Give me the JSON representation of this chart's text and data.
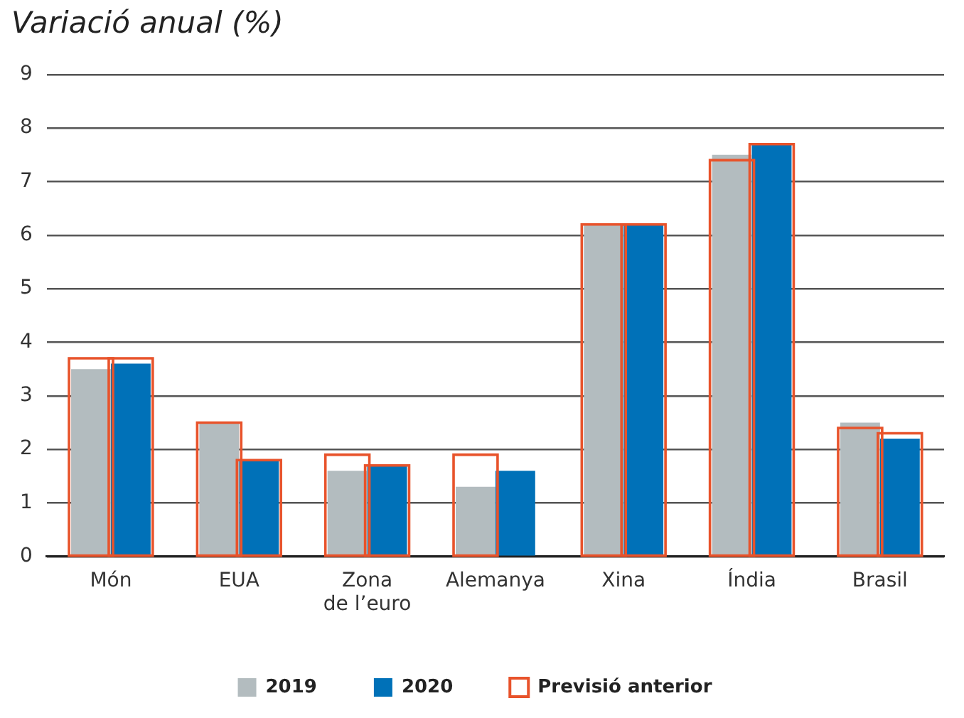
{
  "chart_data": {
    "type": "bar",
    "title": "Variació anual (%)",
    "categories": [
      "Món",
      "EUA",
      "Zona de l’euro",
      "Alemanya",
      "Xina",
      "Índia",
      "Brasil"
    ],
    "series": [
      {
        "name": "2019",
        "color": "#b3bcbf",
        "values": [
          3.5,
          2.5,
          1.6,
          1.3,
          6.2,
          7.5,
          2.5
        ]
      },
      {
        "name": "2020",
        "color": "#0071b8",
        "values": [
          3.6,
          1.8,
          1.7,
          1.6,
          6.2,
          7.7,
          2.2
        ]
      },
      {
        "name": "Previsió anterior",
        "color": "#e8532b",
        "values": [
          3.7,
          2.5,
          1.9,
          1.9,
          6.2,
          7.4,
          2.4
        ]
      },
      {
        "color": "#e8532b",
        "values": [
          3.7,
          1.8,
          1.7,
          null,
          6.2,
          7.7,
          2.3
        ]
      }
    ],
    "ylim": [
      0,
      9
    ],
    "yticks": [
      0,
      1,
      2,
      3,
      4,
      5,
      6,
      7,
      8,
      9
    ],
    "grid": "y",
    "legend": "bottom"
  }
}
